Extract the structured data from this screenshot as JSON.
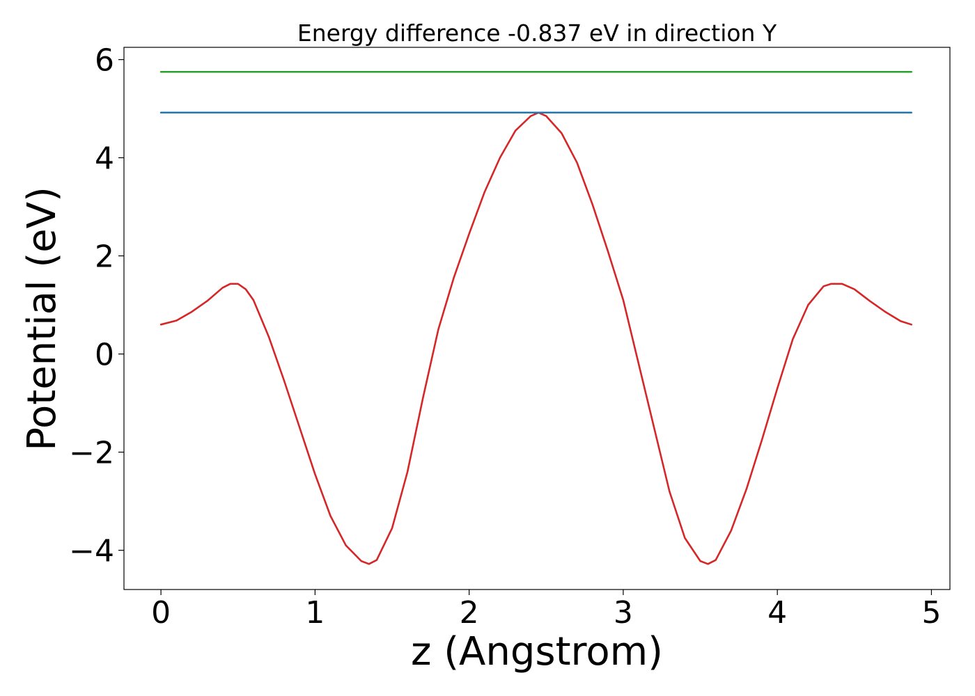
{
  "chart_data": {
    "type": "line",
    "title": "Energy difference -0.837 eV in direction Y",
    "xlabel": "z (Angstrom)",
    "ylabel": "Potential (eV)",
    "xlim": [
      -0.24,
      5.12
    ],
    "ylim": [
      -4.8,
      6.25
    ],
    "xticks": [
      0,
      1,
      2,
      3,
      4,
      5
    ],
    "xtick_labels": [
      "0",
      "1",
      "2",
      "3",
      "4",
      "5"
    ],
    "yticks": [
      -4,
      -2,
      0,
      2,
      4,
      6
    ],
    "ytick_labels": [
      "−4",
      "−2",
      "0",
      "2",
      "4",
      "6"
    ],
    "grid": false,
    "legend": "none",
    "series": [
      {
        "color": "#d62728",
        "x": [
          0,
          0.1,
          0.2,
          0.3,
          0.4,
          0.45,
          0.5,
          0.55,
          0.6,
          0.7,
          0.8,
          0.9,
          1.0,
          1.1,
          1.2,
          1.3,
          1.35,
          1.4,
          1.5,
          1.6,
          1.7,
          1.8,
          1.9,
          2.0,
          2.1,
          2.2,
          2.3,
          2.4,
          2.45,
          2.5,
          2.6,
          2.7,
          2.8,
          2.9,
          3.0,
          3.1,
          3.2,
          3.3,
          3.4,
          3.5,
          3.55,
          3.6,
          3.7,
          3.8,
          3.9,
          4.0,
          4.1,
          4.2,
          4.3,
          4.35,
          4.42,
          4.5,
          4.6,
          4.7,
          4.8,
          4.87
        ],
        "y": [
          0.6,
          0.68,
          0.86,
          1.08,
          1.35,
          1.43,
          1.43,
          1.32,
          1.1,
          0.35,
          -0.55,
          -1.5,
          -2.45,
          -3.3,
          -3.9,
          -4.22,
          -4.28,
          -4.2,
          -3.55,
          -2.4,
          -0.9,
          0.5,
          1.55,
          2.45,
          3.3,
          4.0,
          4.55,
          4.85,
          4.92,
          4.85,
          4.5,
          3.9,
          3.05,
          2.1,
          1.1,
          -0.2,
          -1.5,
          -2.8,
          -3.75,
          -4.22,
          -4.28,
          -4.2,
          -3.6,
          -2.75,
          -1.75,
          -0.7,
          0.3,
          1.0,
          1.38,
          1.43,
          1.43,
          1.32,
          1.08,
          0.86,
          0.67,
          0.6
        ]
      },
      {
        "color": "#1f77b4",
        "x": [
          0,
          4.87
        ],
        "y": [
          4.92,
          4.92
        ]
      },
      {
        "color": "#2ca02c",
        "x": [
          0,
          4.87
        ],
        "y": [
          5.75,
          5.75
        ]
      }
    ]
  }
}
